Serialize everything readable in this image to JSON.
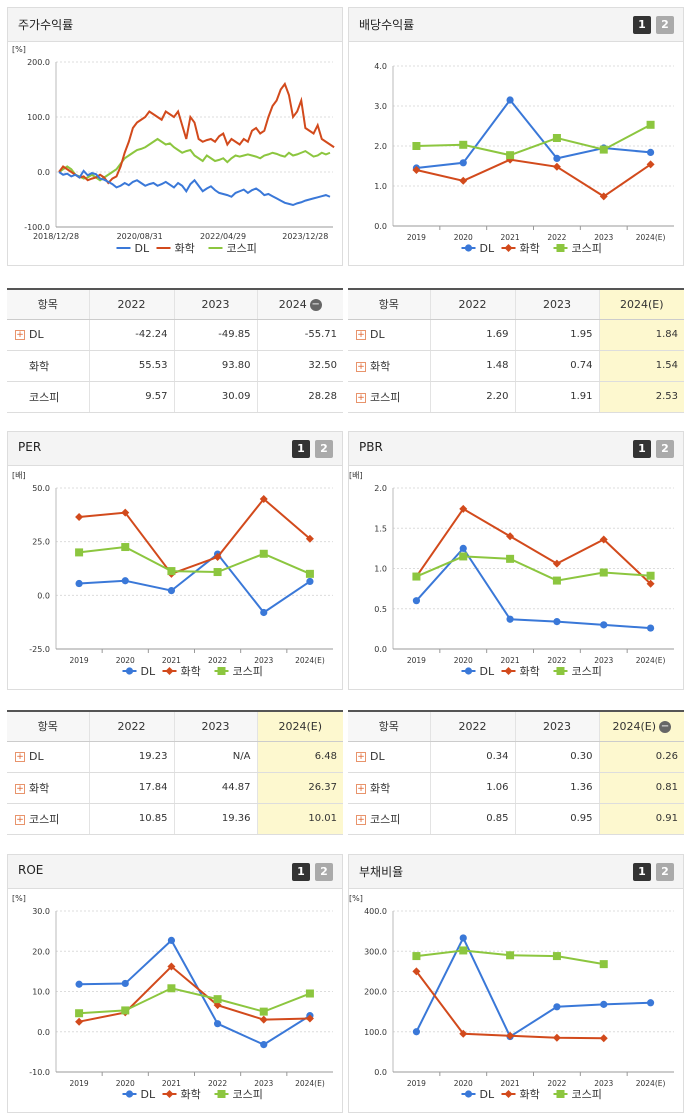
{
  "panels": [
    {
      "title": "주가수익률",
      "btn1": "",
      "btn2": ""
    },
    {
      "title": "배당수익률",
      "btn1": "1",
      "btn2": "2"
    },
    {
      "title": "PER",
      "btn1": "1",
      "btn2": "2"
    },
    {
      "title": "PBR",
      "btn1": "1",
      "btn2": "2"
    },
    {
      "title": "ROE",
      "btn1": "1",
      "btn2": "2"
    },
    {
      "title": "부채비율",
      "btn1": "1",
      "btn2": "2"
    }
  ],
  "legend": [
    "DL",
    "화학",
    "코스피"
  ],
  "colors": {
    "DL": "#3a78d8",
    "화학": "#d24a1c",
    "코스피": "#8cc63f"
  },
  "tables": [
    {
      "header": [
        "항목",
        "2022",
        "2023",
        "2024"
      ],
      "minus": "−",
      "highlight": false,
      "rows": [
        [
          "DL",
          "-42.24",
          "-49.85",
          "-55.71"
        ],
        [
          "화학",
          "55.53",
          "93.80",
          "32.50"
        ],
        [
          "코스피",
          "9.57",
          "30.09",
          "28.28"
        ]
      ],
      "plus": [
        true,
        false,
        false
      ]
    },
    {
      "header": [
        "항목",
        "2022",
        "2023",
        "2024(E)"
      ],
      "minus": "",
      "highlight": true,
      "rows": [
        [
          "DL",
          "1.69",
          "1.95",
          "1.84"
        ],
        [
          "화학",
          "1.48",
          "0.74",
          "1.54"
        ],
        [
          "코스피",
          "2.20",
          "1.91",
          "2.53"
        ]
      ],
      "plus": [
        true,
        true,
        true
      ]
    },
    {
      "header": [
        "항목",
        "2022",
        "2023",
        "2024(E)"
      ],
      "minus": "",
      "highlight": true,
      "rows": [
        [
          "DL",
          "19.23",
          "N/A",
          "6.48"
        ],
        [
          "화학",
          "17.84",
          "44.87",
          "26.37"
        ],
        [
          "코스피",
          "10.85",
          "19.36",
          "10.01"
        ]
      ],
      "plus": [
        true,
        true,
        true
      ]
    },
    {
      "header": [
        "항목",
        "2022",
        "2023",
        "2024(E)"
      ],
      "minus": "−",
      "highlight": true,
      "rows": [
        [
          "DL",
          "0.34",
          "0.30",
          "0.26"
        ],
        [
          "화학",
          "1.06",
          "1.36",
          "0.81"
        ],
        [
          "코스피",
          "0.85",
          "0.95",
          "0.91"
        ]
      ],
      "plus": [
        true,
        true,
        true
      ]
    }
  ],
  "chart_data": [
    {
      "type": "line",
      "title": "주가수익률",
      "unit": "[%]",
      "x_ticks": [
        "2018/12/28",
        "2020/08/31",
        "2022/04/29",
        "2023/12/28"
      ],
      "ylim": [
        -100,
        200
      ],
      "y_ticks": [
        "200.0",
        "100.0",
        "0.0",
        "-100.0"
      ],
      "series": [
        {
          "name": "DL",
          "values": [
            0,
            -5,
            -3,
            -8,
            -5,
            -10,
            2,
            -6,
            -2,
            -4,
            -12,
            -14,
            -18,
            -22,
            -28,
            -25,
            -20,
            -24,
            -18,
            -15,
            -20,
            -25,
            -22,
            -20,
            -25,
            -22,
            -18,
            -23,
            -28,
            -20,
            -25,
            -35,
            -22,
            -15,
            -25,
            -35,
            -30,
            -26,
            -33,
            -38,
            -40,
            -42,
            -45,
            -38,
            -35,
            -32,
            -38,
            -33,
            -30,
            -35,
            -42,
            -40,
            -44,
            -48,
            -52,
            -56,
            -58,
            -60,
            -57,
            -55,
            -52,
            -50,
            -48,
            -46,
            -44,
            -42,
            -45
          ]
        },
        {
          "name": "화학",
          "values": [
            0,
            10,
            5,
            0,
            -5,
            -10,
            -8,
            -15,
            -12,
            -10,
            -5,
            -10,
            -20,
            -12,
            -8,
            10,
            35,
            55,
            80,
            90,
            95,
            100,
            110,
            105,
            100,
            95,
            110,
            105,
            100,
            110,
            85,
            60,
            100,
            90,
            60,
            55,
            58,
            60,
            55,
            65,
            70,
            50,
            60,
            55,
            50,
            60,
            55,
            75,
            80,
            70,
            75,
            100,
            120,
            130,
            150,
            160,
            140,
            100,
            110,
            130,
            80,
            75,
            70,
            85,
            60,
            55,
            50,
            45
          ]
        },
        {
          "name": "코스피",
          "values": [
            0,
            5,
            10,
            5,
            -5,
            -8,
            -12,
            -10,
            -5,
            -10,
            -15,
            -10,
            -5,
            0,
            5,
            15,
            25,
            30,
            35,
            40,
            42,
            45,
            50,
            55,
            60,
            55,
            50,
            52,
            45,
            40,
            35,
            38,
            40,
            30,
            25,
            20,
            30,
            25,
            20,
            22,
            25,
            18,
            25,
            30,
            28,
            30,
            32,
            30,
            28,
            25,
            30,
            32,
            35,
            33,
            30,
            28,
            35,
            30,
            32,
            35,
            38,
            33,
            28,
            30,
            35,
            32,
            35
          ]
        }
      ]
    },
    {
      "type": "line",
      "title": "배당수익률",
      "unit": "",
      "categories": [
        "2019",
        "2020",
        "2021",
        "2022",
        "2023",
        "2024(E)"
      ],
      "ylim": [
        0,
        4
      ],
      "y_ticks": [
        "4.0",
        "3.0",
        "2.0",
        "1.0",
        "0.0"
      ],
      "series": [
        {
          "name": "DL",
          "values": [
            1.45,
            1.58,
            3.15,
            1.69,
            1.95,
            1.84
          ]
        },
        {
          "name": "화학",
          "values": [
            1.4,
            1.13,
            1.66,
            1.48,
            0.74,
            1.54
          ]
        },
        {
          "name": "코스피",
          "values": [
            2.0,
            2.03,
            1.77,
            2.2,
            1.91,
            2.53
          ]
        }
      ]
    },
    {
      "type": "line",
      "title": "PER",
      "unit": "[배]",
      "categories": [
        "2019",
        "2020",
        "2021",
        "2022",
        "2023",
        "2024(E)"
      ],
      "ylim": [
        -25,
        50
      ],
      "y_ticks": [
        "50.0",
        "25.0",
        "0.0",
        "-25.0"
      ],
      "series": [
        {
          "name": "DL",
          "values": [
            5.5,
            6.8,
            2.2,
            19.23,
            -8.0,
            6.48
          ]
        },
        {
          "name": "화학",
          "values": [
            36.5,
            38.5,
            10.0,
            17.84,
            44.87,
            26.37
          ]
        },
        {
          "name": "코스피",
          "values": [
            20.0,
            22.5,
            11.3,
            10.85,
            19.36,
            10.01
          ]
        }
      ]
    },
    {
      "type": "line",
      "title": "PBR",
      "unit": "[배]",
      "categories": [
        "2019",
        "2020",
        "2021",
        "2022",
        "2023",
        "2024(E)"
      ],
      "ylim": [
        0,
        2
      ],
      "y_ticks": [
        "2.0",
        "1.5",
        "1.0",
        "0.5",
        "0.0"
      ],
      "series": [
        {
          "name": "DL",
          "values": [
            0.6,
            1.25,
            0.37,
            0.34,
            0.3,
            0.26
          ]
        },
        {
          "name": "화학",
          "values": [
            0.9,
            1.74,
            1.4,
            1.06,
            1.36,
            0.81
          ]
        },
        {
          "name": "코스피",
          "values": [
            0.9,
            1.15,
            1.12,
            0.85,
            0.95,
            0.91
          ]
        }
      ]
    },
    {
      "type": "line",
      "title": "ROE",
      "unit": "[%]",
      "categories": [
        "2019",
        "2020",
        "2021",
        "2022",
        "2023",
        "2024(E)"
      ],
      "ylim": [
        -10,
        30
      ],
      "y_ticks": [
        "30.0",
        "20.0",
        "10.0",
        "0.0",
        "-10.0"
      ],
      "series": [
        {
          "name": "DL",
          "values": [
            11.8,
            12.0,
            22.7,
            2.0,
            -3.2,
            4.0
          ]
        },
        {
          "name": "화학",
          "values": [
            2.5,
            4.8,
            16.2,
            6.6,
            3.0,
            3.3
          ]
        },
        {
          "name": "코스피",
          "values": [
            4.6,
            5.3,
            10.8,
            8.1,
            5.0,
            9.5
          ]
        }
      ]
    },
    {
      "type": "line",
      "title": "부채비율",
      "unit": "[%]",
      "categories": [
        "2019",
        "2020",
        "2021",
        "2022",
        "2023",
        "2024(E)"
      ],
      "ylim": [
        0,
        400
      ],
      "y_ticks": [
        "400.0",
        "300.0",
        "200.0",
        "100.0",
        "0.0"
      ],
      "series": [
        {
          "name": "DL",
          "values": [
            100,
            333,
            88,
            162,
            168,
            172
          ]
        },
        {
          "name": "화학",
          "values": [
            250,
            95,
            90,
            85,
            84,
            null
          ]
        },
        {
          "name": "코스피",
          "values": [
            288,
            302,
            290,
            288,
            268,
            null
          ]
        }
      ]
    }
  ]
}
